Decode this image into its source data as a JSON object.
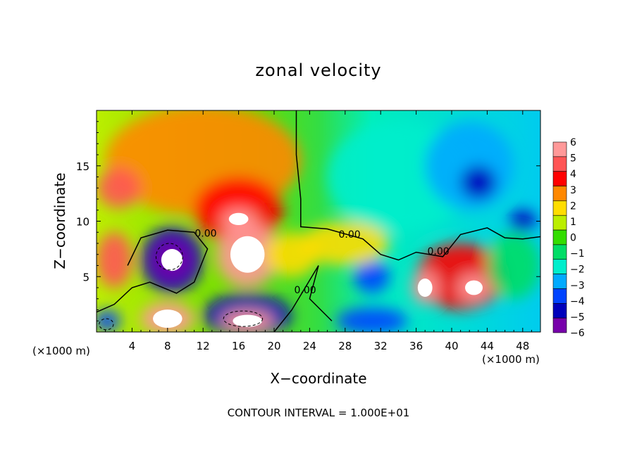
{
  "chart_data": {
    "type": "heatmap",
    "title": "zonal velocity",
    "xlabel": "X−coordinate",
    "ylabel": "Z−coordinate",
    "x_unit_note": "(×1000 m)",
    "footnote": "CONTOUR INTERVAL = 1.000E+01",
    "xlim": [
      0,
      50
    ],
    "ylim": [
      0,
      20
    ],
    "x_ticks": [
      4,
      8,
      12,
      16,
      20,
      24,
      28,
      32,
      36,
      40,
      44,
      48
    ],
    "x_tick_labels": [
      "4",
      "8",
      "12",
      "16",
      "20",
      "24",
      "28",
      "32",
      "36",
      "40",
      "44",
      "48"
    ],
    "y_ticks": [
      5,
      10,
      15
    ],
    "y_tick_labels": [
      "5",
      "10",
      "15"
    ],
    "colorbar": {
      "levels": [
        6,
        5,
        4,
        3,
        2,
        1,
        0,
        -1,
        -2,
        -3,
        -4,
        -5,
        -6
      ],
      "labels": [
        "6",
        "5",
        "4",
        "3",
        "2",
        "1",
        "0",
        "−1",
        "−2",
        "−3",
        "−4",
        "−5",
        "−6"
      ],
      "colors": [
        "#ff9999",
        "#ff5555",
        "#ff0000",
        "#ff8800",
        "#ffdd00",
        "#bbee00",
        "#33dd00",
        "#00dd66",
        "#00eecc",
        "#00aaff",
        "#0044ff",
        "#0000bb",
        "#7700aa"
      ]
    },
    "contour_labels": [
      {
        "text": "0.00",
        "x": 28.5,
        "y": 8.5
      },
      {
        "text": "0.00",
        "x": 38.5,
        "y": 7
      },
      {
        "text": "0.00",
        "x": 23.5,
        "y": 3.5
      },
      {
        "text": "0.00",
        "x": 12.3,
        "y": 8.6
      }
    ],
    "field_blobs": [
      {
        "x": 12,
        "y": 15.5,
        "rx": 11,
        "ry": 5,
        "value": 3
      },
      {
        "x": 2.5,
        "y": 13,
        "rx": 2.4,
        "ry": 1.8,
        "value": 5
      },
      {
        "x": 16,
        "y": 11,
        "rx": 5,
        "ry": 3,
        "value": 4
      },
      {
        "x": 16,
        "y": 10.2,
        "rx": 2,
        "ry": 1,
        "value": 6
      },
      {
        "x": 17,
        "y": 7,
        "rx": 3.5,
        "ry": 3,
        "value": 6
      },
      {
        "x": 2,
        "y": 6.5,
        "rx": 2,
        "ry": 2.5,
        "value": 5
      },
      {
        "x": 8.5,
        "y": 6.5,
        "rx": 3.5,
        "ry": 3,
        "value": -5
      },
      {
        "x": 8.5,
        "y": 6.5,
        "rx": 2.2,
        "ry": 1.8,
        "value": -6
      },
      {
        "x": 34,
        "y": 14,
        "rx": 8,
        "ry": 5,
        "value": -2
      },
      {
        "x": 42,
        "y": 15,
        "rx": 5,
        "ry": 4,
        "value": -3
      },
      {
        "x": 43,
        "y": 13.5,
        "rx": 2,
        "ry": 1.5,
        "value": -5
      },
      {
        "x": 48,
        "y": 10,
        "rx": 1.5,
        "ry": 1,
        "value": -5
      },
      {
        "x": 31,
        "y": 5,
        "rx": 2,
        "ry": 1.5,
        "value": -4
      },
      {
        "x": 41,
        "y": 5,
        "rx": 5,
        "ry": 3,
        "value": 4
      },
      {
        "x": 42.5,
        "y": 4,
        "rx": 1.8,
        "ry": 1.2,
        "value": 6
      },
      {
        "x": 37,
        "y": 4,
        "rx": 1.5,
        "ry": 1.5,
        "value": 6
      },
      {
        "x": 17,
        "y": 1.5,
        "rx": 5,
        "ry": 2,
        "value": -5
      },
      {
        "x": 17,
        "y": 1,
        "rx": 3,
        "ry": 1,
        "value": 6
      },
      {
        "x": 8,
        "y": 1.2,
        "rx": 3,
        "ry": 1.5,
        "value": 6
      },
      {
        "x": 31,
        "y": 1,
        "rx": 4,
        "ry": 1.2,
        "value": -4
      },
      {
        "x": 1.2,
        "y": 1,
        "rx": 1.5,
        "ry": 1,
        "value": -4
      },
      {
        "x": 22,
        "y": 7,
        "rx": 3,
        "ry": 2,
        "value": 2
      },
      {
        "x": 28,
        "y": 8,
        "rx": 5,
        "ry": 2,
        "value": 2
      },
      {
        "x": 47,
        "y": 6,
        "rx": 3,
        "ry": 3,
        "value": -1
      }
    ]
  }
}
